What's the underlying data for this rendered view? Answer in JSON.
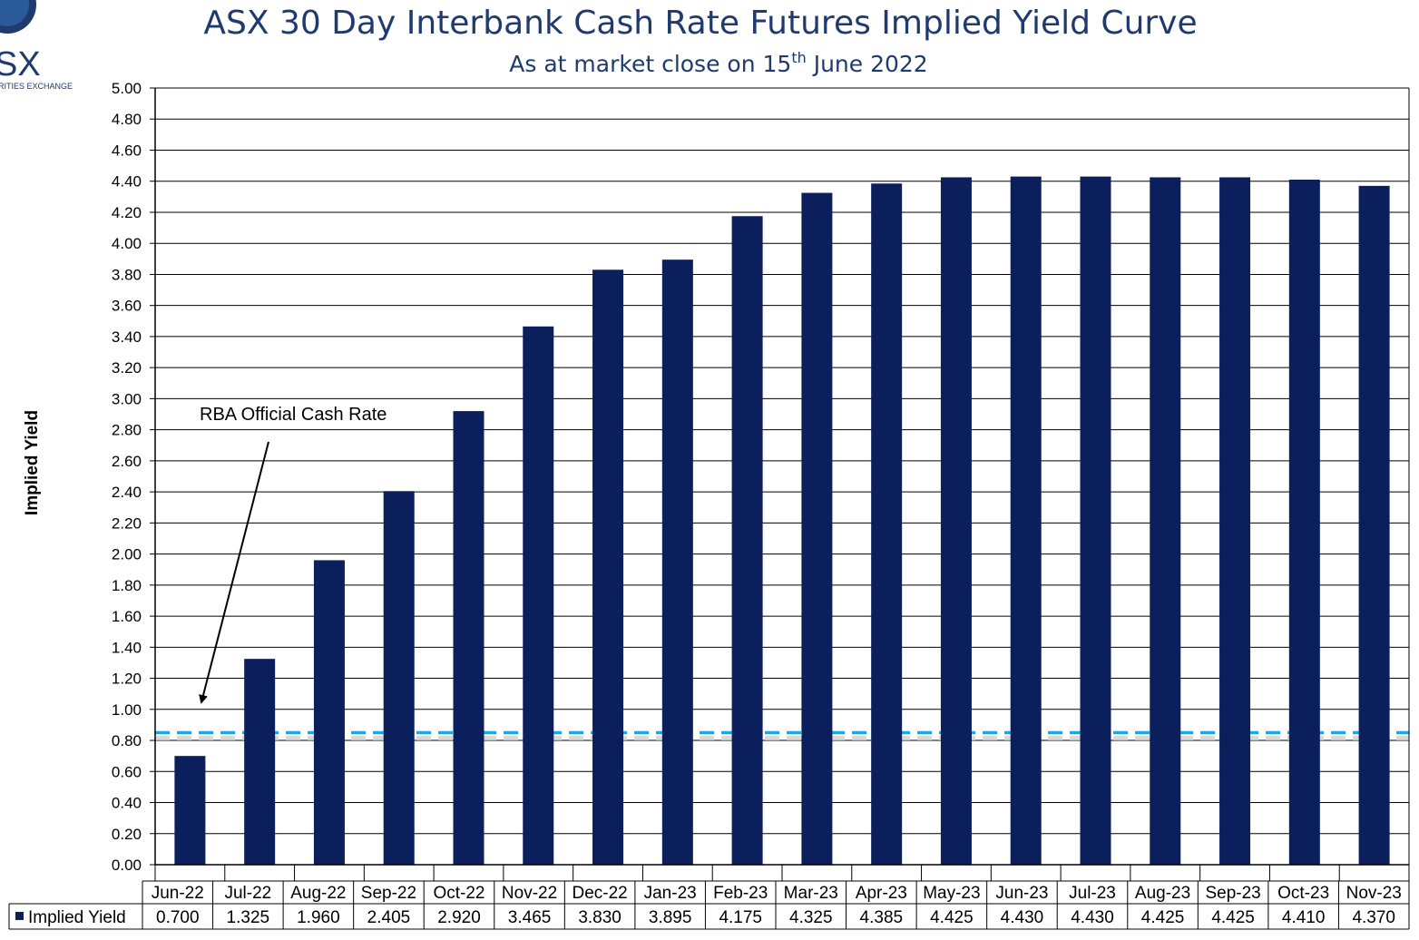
{
  "logo": {
    "name": "SX",
    "tagline": "RITIES EXCHANGE"
  },
  "chart_data": {
    "type": "bar",
    "title": "ASX 30 Day Interbank Cash Rate Futures Implied Yield Curve",
    "subtitle": {
      "prefix": "As at market close on 15",
      "sup": "th",
      "suffix": " June 2022"
    },
    "ylabel": "Implied Yield",
    "xlabel": "",
    "ylim": [
      0,
      5
    ],
    "ytick_labels": [
      "0.00",
      "0.20",
      "0.40",
      "0.60",
      "0.80",
      "1.00",
      "1.20",
      "1.40",
      "1.60",
      "1.80",
      "2.00",
      "2.20",
      "2.40",
      "2.60",
      "2.80",
      "3.00",
      "3.20",
      "3.40",
      "3.60",
      "3.80",
      "4.00",
      "4.20",
      "4.40",
      "4.60",
      "4.80",
      "5.00"
    ],
    "grid": true,
    "categories": [
      "Jun-22",
      "Jul-22",
      "Aug-22",
      "Sep-22",
      "Oct-22",
      "Nov-22",
      "Dec-22",
      "Jan-23",
      "Feb-23",
      "Mar-23",
      "Apr-23",
      "May-23",
      "Jun-23",
      "Jul-23",
      "Aug-23",
      "Sep-23",
      "Oct-23",
      "Nov-23"
    ],
    "series": [
      {
        "name": "Implied Yield",
        "color": "#0b1f5c",
        "values": [
          0.7,
          1.325,
          1.96,
          2.405,
          2.92,
          3.465,
          3.83,
          3.895,
          4.175,
          4.325,
          4.385,
          4.425,
          4.43,
          4.43,
          4.425,
          4.425,
          4.41,
          4.37
        ],
        "value_labels": [
          "0.700",
          "1.325",
          "1.960",
          "2.405",
          "2.920",
          "3.465",
          "3.830",
          "3.895",
          "4.175",
          "4.325",
          "4.385",
          "4.425",
          "4.430",
          "4.430",
          "4.425",
          "4.425",
          "4.410",
          "4.370"
        ]
      }
    ],
    "reference_line": {
      "value": 0.85,
      "color": "#1ea7e1",
      "style": "dashed"
    },
    "annotation": {
      "text": "RBA Official Cash Rate"
    },
    "data_table": true
  }
}
